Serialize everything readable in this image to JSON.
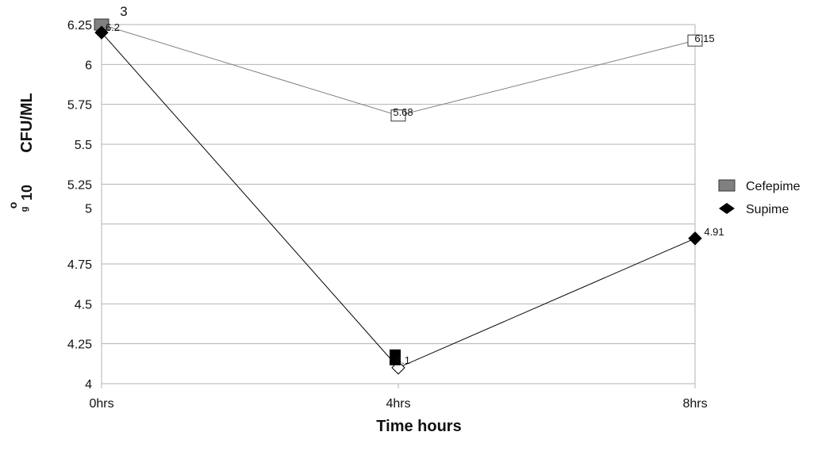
{
  "chart_data": {
    "type": "line",
    "categories": [
      "0hrs",
      "4hrs",
      "8hrs"
    ],
    "xlabel": "Time hours",
    "ylabel": "CFU/ML",
    "ylabel_prefix": "10",
    "ylabel_fragments": [
      "o",
      "g"
    ],
    "stray_label": "3",
    "ylim": [
      4,
      6.25
    ],
    "yticks": [
      "4",
      "4.25",
      "4.5",
      "4.75",
      "5",
      "5.25",
      "5.5",
      "5.75",
      "6",
      "6.25"
    ],
    "grid": true,
    "legend": "right",
    "series": [
      {
        "name": "Cefepime",
        "values": [
          6.25,
          5.68,
          6.15
        ],
        "labels": [
          "",
          "5.68",
          "6.15"
        ],
        "color": "#808080",
        "marker": "square"
      },
      {
        "name": "Supime",
        "values": [
          6.2,
          4.1,
          4.91
        ],
        "labels": [
          "6.2",
          "4.1",
          "4.91"
        ],
        "color": "#000000",
        "marker": "diamond"
      }
    ]
  }
}
